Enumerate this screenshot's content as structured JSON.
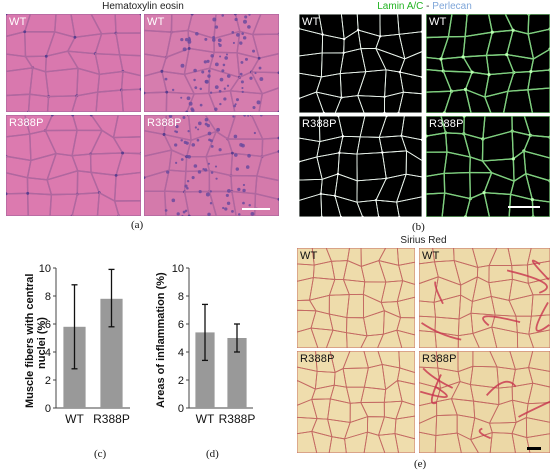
{
  "panel_a": {
    "title": "Hematoxylin eosin",
    "caption": "(a)",
    "tiles": [
      "WT",
      "WT",
      "R388P",
      "R388P"
    ]
  },
  "panel_b": {
    "title_part1": "Lamin A/C",
    "title_sep": " - ",
    "title_part2": "Perlecan",
    "colors": {
      "lamin": "#22b322",
      "perlecan": "#7fa6d9"
    },
    "caption": "(b)",
    "tiles": [
      "WT",
      "WT",
      "R388P",
      "R388P"
    ]
  },
  "panel_e": {
    "title": "Sirius Red",
    "caption": "(e)",
    "tiles": [
      "WT",
      "WT",
      "R388P",
      "R388P"
    ]
  },
  "chart_data": [
    {
      "type": "bar",
      "panel": "(c)",
      "categories": [
        "WT",
        "R388P"
      ],
      "values": [
        5.8,
        7.8
      ],
      "error": [
        [
          2.8,
          8.8
        ],
        [
          5.8,
          9.9
        ]
      ],
      "ylabel": "Muscle fibers with central nuclei (%)",
      "ylabel_line1": "Muscle fibers with central",
      "ylabel_line2": "nuclei (%)",
      "ylim": [
        0,
        10
      ],
      "yticks": [
        "0",
        "2",
        "4",
        "6",
        "8",
        "10"
      ],
      "bar_color": "#999999"
    },
    {
      "type": "bar",
      "panel": "(d)",
      "categories": [
        "WT",
        "R388P"
      ],
      "values": [
        5.4,
        5.0
      ],
      "error": [
        [
          3.4,
          7.4
        ],
        [
          4.0,
          6.0
        ]
      ],
      "ylabel": "Areas of inflammation (%)",
      "ylim": [
        0,
        10
      ],
      "yticks": [
        "0",
        "2",
        "4",
        "6",
        "8",
        "10"
      ],
      "bar_color": "#999999"
    }
  ]
}
